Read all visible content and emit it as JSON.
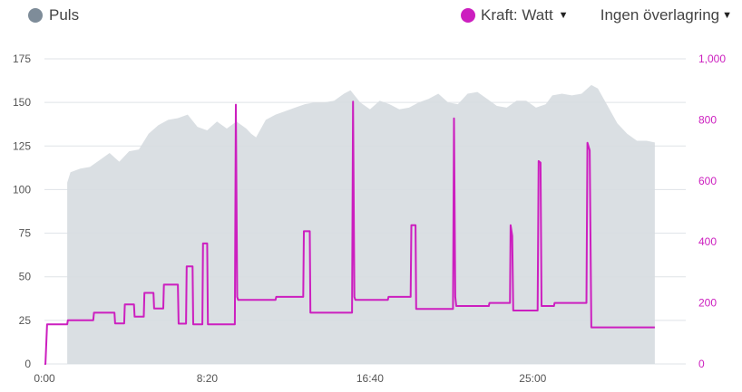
{
  "legend": {
    "pulse_label": "Puls",
    "power_label": "Kraft: Watt",
    "overlay_label": "Ingen överlagring",
    "pulse_color": "#7e8c99",
    "power_color": "#cc1fbf",
    "caret_icon": "caret-down-icon"
  },
  "chart_data": {
    "type": "area",
    "x_unit": "time (min:s)",
    "x_ticks": [
      "0:00",
      "8:20",
      "16:40",
      "25:00"
    ],
    "x_range_seconds": [
      0,
      1970
    ],
    "left_axis": {
      "label": "",
      "ticks": [
        0,
        25,
        50,
        75,
        100,
        125,
        150,
        175
      ],
      "ylim": [
        0,
        175
      ]
    },
    "right_axis": {
      "label": "",
      "ticks": [
        "0",
        "200",
        "400",
        "600",
        "800",
        "1,000"
      ],
      "ylim": [
        0,
        1000
      ]
    },
    "grid": true,
    "series": [
      {
        "name": "Puls",
        "axis": "left",
        "style": "area",
        "points": [
          [
            70,
            104
          ],
          [
            80,
            110
          ],
          [
            110,
            112
          ],
          [
            140,
            113
          ],
          [
            170,
            117
          ],
          [
            200,
            121
          ],
          [
            230,
            116
          ],
          [
            260,
            122
          ],
          [
            290,
            123
          ],
          [
            320,
            132
          ],
          [
            350,
            137
          ],
          [
            380,
            140
          ],
          [
            410,
            141
          ],
          [
            440,
            143
          ],
          [
            470,
            136
          ],
          [
            500,
            134
          ],
          [
            530,
            139
          ],
          [
            560,
            135
          ],
          [
            590,
            139
          ],
          [
            620,
            135
          ],
          [
            635,
            132
          ],
          [
            650,
            130
          ],
          [
            680,
            140
          ],
          [
            710,
            143
          ],
          [
            740,
            145
          ],
          [
            770,
            147
          ],
          [
            800,
            149
          ],
          [
            830,
            150
          ],
          [
            860,
            150
          ],
          [
            890,
            151
          ],
          [
            920,
            155
          ],
          [
            940,
            157
          ],
          [
            970,
            150
          ],
          [
            1000,
            146
          ],
          [
            1030,
            151
          ],
          [
            1060,
            149
          ],
          [
            1090,
            146
          ],
          [
            1120,
            147
          ],
          [
            1150,
            150
          ],
          [
            1180,
            152
          ],
          [
            1210,
            155
          ],
          [
            1240,
            150
          ],
          [
            1270,
            149
          ],
          [
            1300,
            155
          ],
          [
            1330,
            156
          ],
          [
            1360,
            152
          ],
          [
            1390,
            148
          ],
          [
            1420,
            147
          ],
          [
            1450,
            151
          ],
          [
            1480,
            151
          ],
          [
            1510,
            147
          ],
          [
            1540,
            149
          ],
          [
            1560,
            154
          ],
          [
            1590,
            155
          ],
          [
            1620,
            154
          ],
          [
            1650,
            155
          ],
          [
            1680,
            160
          ],
          [
            1700,
            158
          ],
          [
            1730,
            148
          ],
          [
            1760,
            138
          ],
          [
            1790,
            132
          ],
          [
            1820,
            128
          ],
          [
            1850,
            128
          ],
          [
            1875,
            127
          ]
        ]
      },
      {
        "name": "Kraft: Watt",
        "axis": "right",
        "style": "line",
        "points": [
          [
            0,
            0
          ],
          [
            3,
            0
          ],
          [
            8,
            130
          ],
          [
            70,
            130
          ],
          [
            72,
            143
          ],
          [
            150,
            143
          ],
          [
            152,
            168
          ],
          [
            215,
            168
          ],
          [
            217,
            133
          ],
          [
            245,
            133
          ],
          [
            247,
            195
          ],
          [
            275,
            195
          ],
          [
            277,
            155
          ],
          [
            305,
            155
          ],
          [
            307,
            233
          ],
          [
            335,
            233
          ],
          [
            337,
            182
          ],
          [
            365,
            182
          ],
          [
            367,
            260
          ],
          [
            410,
            260
          ],
          [
            412,
            132
          ],
          [
            435,
            132
          ],
          [
            437,
            320
          ],
          [
            455,
            320
          ],
          [
            457,
            130
          ],
          [
            485,
            130
          ],
          [
            487,
            395
          ],
          [
            500,
            395
          ],
          [
            502,
            130
          ],
          [
            585,
            130
          ],
          [
            588,
            850
          ],
          [
            592,
            220
          ],
          [
            595,
            210
          ],
          [
            710,
            210
          ],
          [
            712,
            220
          ],
          [
            795,
            220
          ],
          [
            797,
            435
          ],
          [
            815,
            435
          ],
          [
            817,
            168
          ],
          [
            945,
            168
          ],
          [
            948,
            860
          ],
          [
            952,
            220
          ],
          [
            955,
            210
          ],
          [
            1055,
            210
          ],
          [
            1057,
            220
          ],
          [
            1125,
            220
          ],
          [
            1127,
            455
          ],
          [
            1140,
            455
          ],
          [
            1142,
            180
          ],
          [
            1255,
            180
          ],
          [
            1258,
            805
          ],
          [
            1262,
            220
          ],
          [
            1265,
            190
          ],
          [
            1365,
            190
          ],
          [
            1367,
            200
          ],
          [
            1430,
            200
          ],
          [
            1432,
            455
          ],
          [
            1437,
            420
          ],
          [
            1440,
            175
          ],
          [
            1515,
            175
          ],
          [
            1518,
            665
          ],
          [
            1524,
            660
          ],
          [
            1527,
            190
          ],
          [
            1565,
            190
          ],
          [
            1567,
            200
          ],
          [
            1665,
            200
          ],
          [
            1668,
            725
          ],
          [
            1675,
            700
          ],
          [
            1680,
            120
          ],
          [
            1875,
            120
          ]
        ]
      }
    ]
  }
}
